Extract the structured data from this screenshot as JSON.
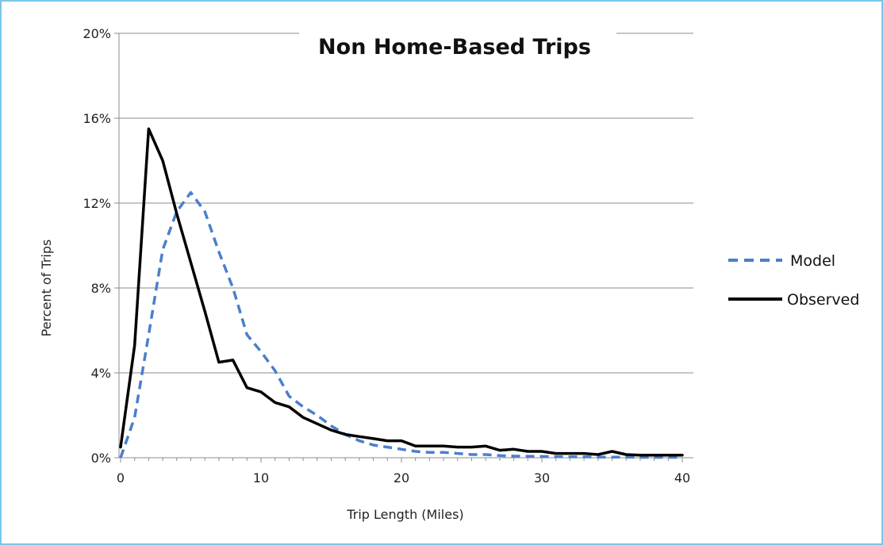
{
  "chart_data": {
    "type": "line",
    "title": "Non Home-Based Trips",
    "xlabel": "Trip Length (Miles)",
    "ylabel": "Percent of Trips",
    "xlim": [
      0,
      40
    ],
    "ylim": [
      0,
      20
    ],
    "x_ticks": [
      0,
      10,
      20,
      30,
      40
    ],
    "x_tick_labels": [
      "0",
      "10",
      "20",
      "30",
      "40"
    ],
    "y_ticks": [
      0,
      4,
      8,
      12,
      16,
      20
    ],
    "y_tick_labels": [
      "0%",
      "4%",
      "8%",
      "12%",
      "16%",
      "20%"
    ],
    "grid": "horizontal",
    "legend_position": "right",
    "series": [
      {
        "name": "Model",
        "style": "dashed",
        "color": "#4a7fcc",
        "points": [
          [
            0.0,
            0.0
          ],
          [
            1.0,
            1.9
          ],
          [
            2.0,
            5.8
          ],
          [
            3.0,
            9.8
          ],
          [
            4.0,
            11.6
          ],
          [
            5.0,
            12.5
          ],
          [
            6.0,
            11.6
          ],
          [
            7.0,
            9.7
          ],
          [
            8.0,
            8.0
          ],
          [
            9.0,
            5.8
          ],
          [
            10.0,
            5.0
          ],
          [
            11.0,
            4.1
          ],
          [
            12.0,
            2.9
          ],
          [
            13.0,
            2.4
          ],
          [
            14.0,
            2.0
          ],
          [
            15.0,
            1.5
          ],
          [
            16.0,
            1.1
          ],
          [
            17.0,
            0.8
          ],
          [
            18.0,
            0.6
          ],
          [
            19.0,
            0.5
          ],
          [
            20.0,
            0.4
          ],
          [
            21.0,
            0.3
          ],
          [
            22.0,
            0.25
          ],
          [
            23.0,
            0.25
          ],
          [
            24.0,
            0.2
          ],
          [
            25.0,
            0.15
          ],
          [
            26.0,
            0.15
          ],
          [
            27.0,
            0.1
          ],
          [
            28.0,
            0.08
          ],
          [
            29.0,
            0.07
          ],
          [
            30.0,
            0.06
          ],
          [
            31.0,
            0.05
          ],
          [
            32.0,
            0.04
          ],
          [
            33.0,
            0.04
          ],
          [
            34.0,
            0.03
          ],
          [
            35.0,
            0.03
          ],
          [
            36.0,
            0.03
          ],
          [
            37.0,
            0.02
          ],
          [
            38.0,
            0.02
          ],
          [
            39.0,
            0.02
          ],
          [
            40.0,
            0.02
          ]
        ]
      },
      {
        "name": "Observed",
        "style": "solid",
        "color": "#000000",
        "points": [
          [
            0.0,
            0.5
          ],
          [
            1.0,
            5.3
          ],
          [
            2.0,
            15.5
          ],
          [
            3.0,
            14.0
          ],
          [
            4.0,
            11.5
          ],
          [
            5.0,
            9.2
          ],
          [
            6.0,
            6.9
          ],
          [
            7.0,
            4.5
          ],
          [
            8.0,
            4.6
          ],
          [
            9.0,
            3.3
          ],
          [
            10.0,
            3.1
          ],
          [
            11.0,
            2.6
          ],
          [
            12.0,
            2.4
          ],
          [
            13.0,
            1.9
          ],
          [
            14.0,
            1.6
          ],
          [
            15.0,
            1.3
          ],
          [
            16.0,
            1.1
          ],
          [
            17.0,
            1.0
          ],
          [
            18.0,
            0.9
          ],
          [
            19.0,
            0.8
          ],
          [
            20.0,
            0.8
          ],
          [
            21.0,
            0.55
          ],
          [
            22.0,
            0.55
          ],
          [
            23.0,
            0.55
          ],
          [
            24.0,
            0.5
          ],
          [
            25.0,
            0.5
          ],
          [
            26.0,
            0.55
          ],
          [
            27.0,
            0.35
          ],
          [
            28.0,
            0.4
          ],
          [
            29.0,
            0.3
          ],
          [
            30.0,
            0.3
          ],
          [
            31.0,
            0.2
          ],
          [
            32.0,
            0.2
          ],
          [
            33.0,
            0.2
          ],
          [
            34.0,
            0.15
          ],
          [
            35.0,
            0.3
          ],
          [
            36.0,
            0.15
          ],
          [
            37.0,
            0.12
          ],
          [
            38.0,
            0.12
          ],
          [
            39.0,
            0.12
          ],
          [
            40.0,
            0.12
          ]
        ]
      }
    ]
  }
}
